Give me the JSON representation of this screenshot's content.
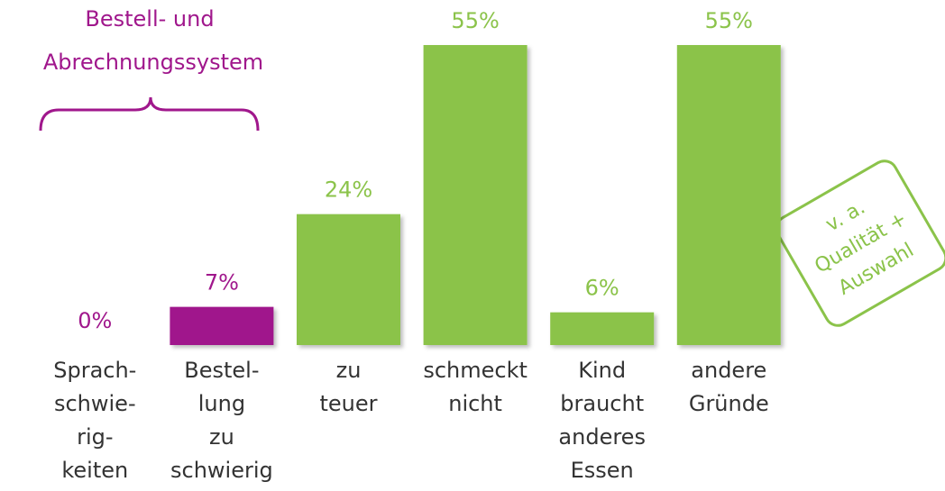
{
  "chart_data": {
    "type": "bar",
    "categories": [
      [
        "Sprach-",
        "schwie-",
        "rig-",
        "keiten"
      ],
      [
        "Bestel-",
        "lung",
        "zu",
        "schwierig"
      ],
      [
        "zu",
        "teuer"
      ],
      [
        "schmeckt",
        "nicht"
      ],
      [
        "Kind",
        "braucht",
        "anderes",
        "Essen"
      ],
      [
        "andere",
        "Gründe"
      ]
    ],
    "values": [
      0,
      7,
      24,
      55,
      6,
      55
    ],
    "value_labels": [
      "0%",
      "7%",
      "24%",
      "55%",
      "6%",
      "55%"
    ],
    "colors": [
      "#a0178c",
      "#a0178c",
      "#8bc34a",
      "#8bc34a",
      "#8bc34a",
      "#8bc34a"
    ],
    "ylim": [
      0,
      55
    ],
    "bracket_label": [
      "Bestell- und",
      "Abrechnungssystem"
    ],
    "note": [
      "v. a.",
      "Qualität +",
      "Auswahl"
    ]
  }
}
